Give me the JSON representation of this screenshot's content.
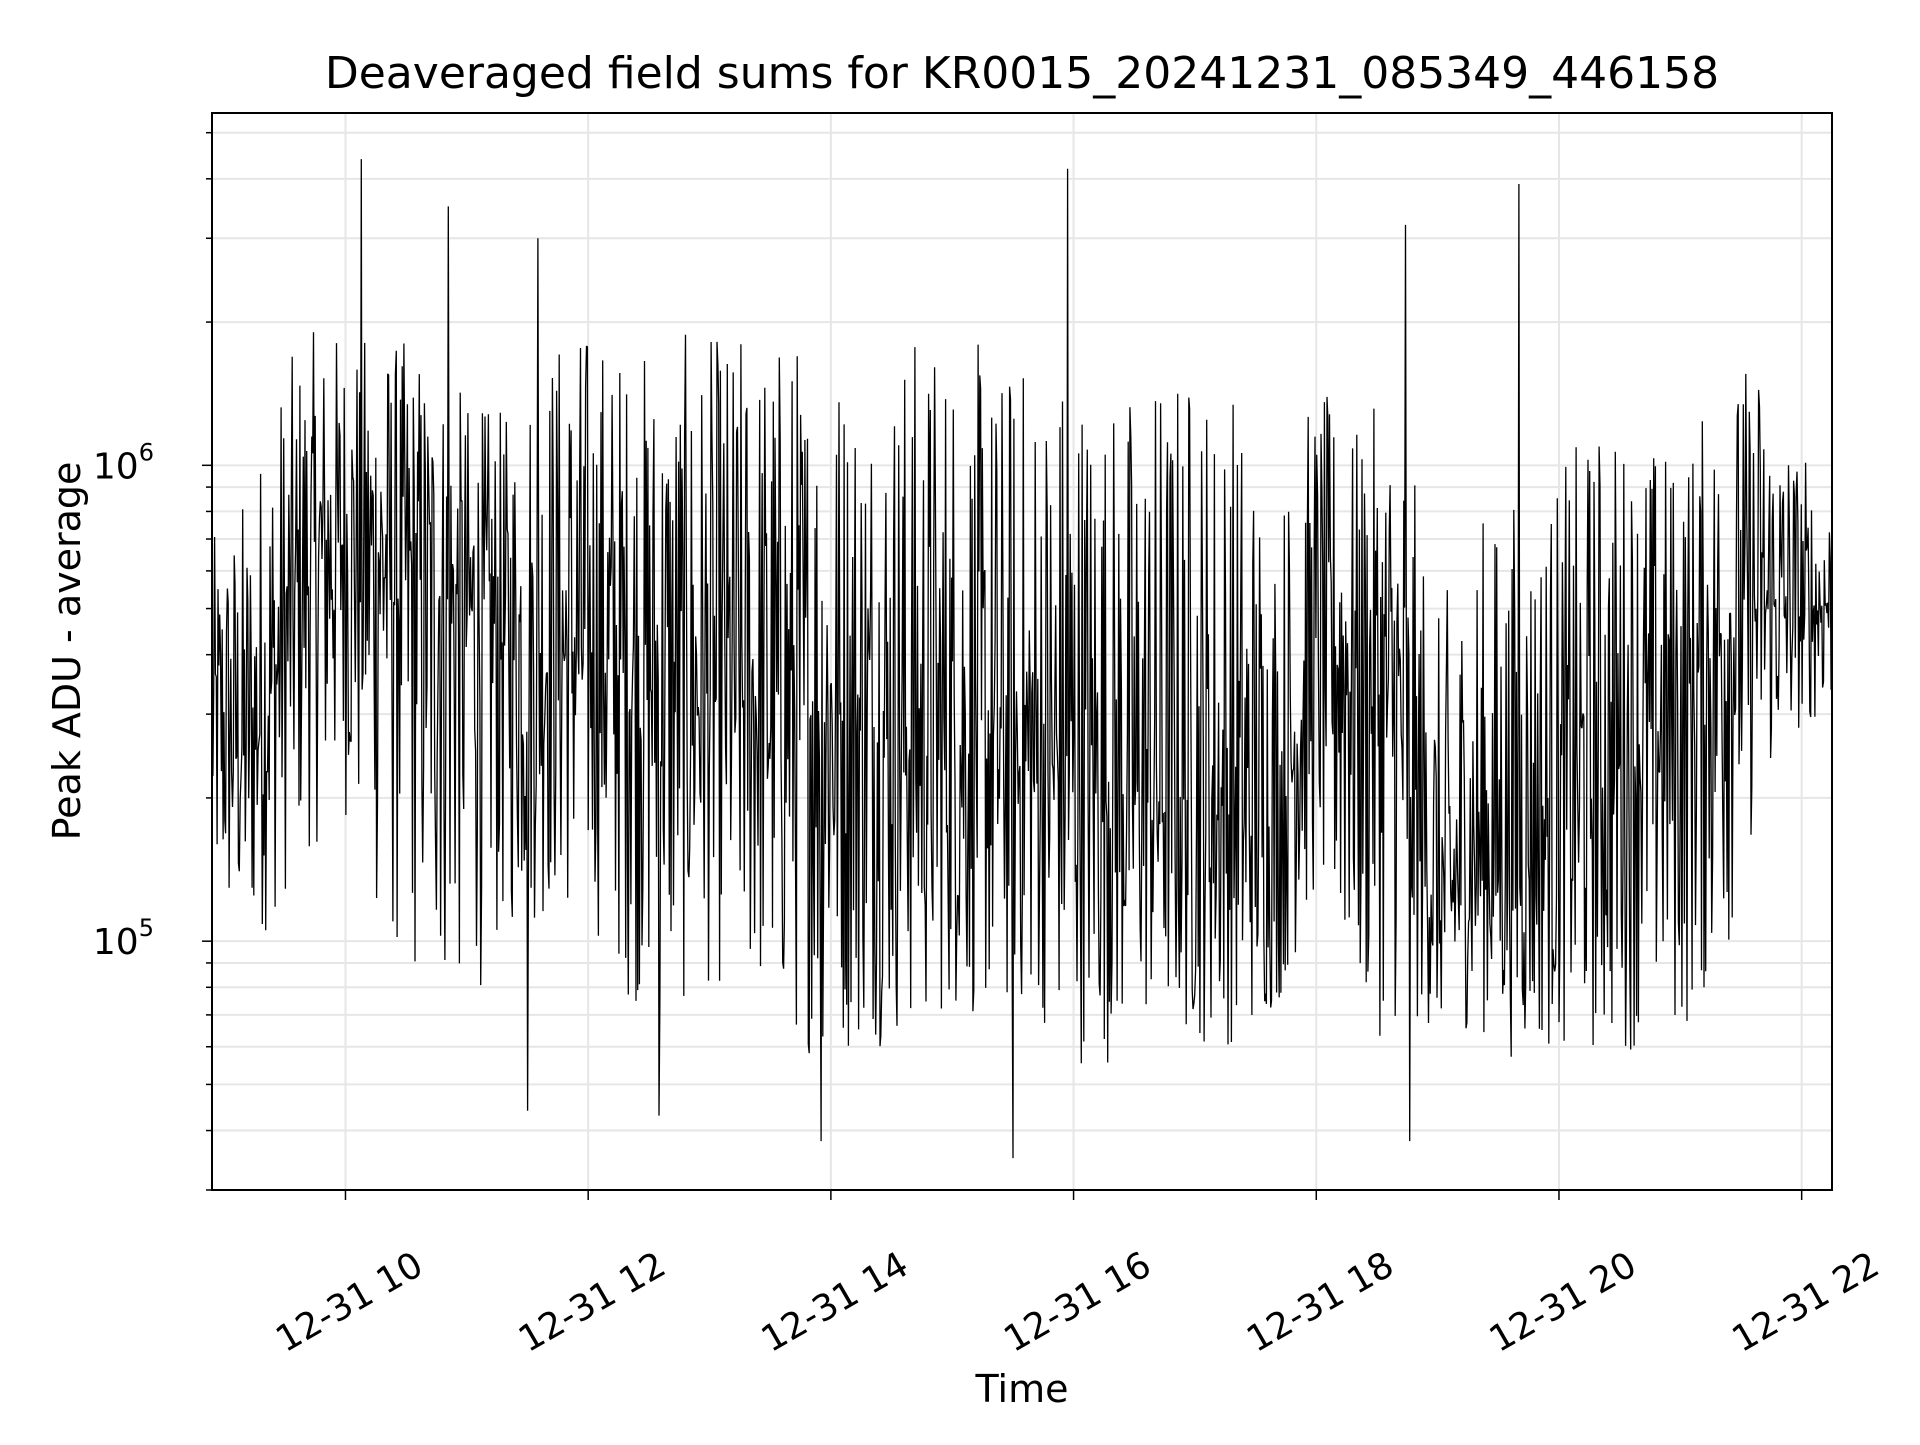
{
  "chart_data": {
    "type": "line",
    "title": "Deaveraged field sums for KR0015_20241231_085349_446158",
    "xlabel": "Time",
    "ylabel": "Peak ADU - average",
    "yscale": "log",
    "ylim": [
      30000,
      5500000
    ],
    "xlim": [
      "2024-12-31 08:54",
      "2024-12-31 22:15"
    ],
    "grid": true,
    "x_ticks": [
      {
        "value": "2024-12-31 10:00",
        "label": "12-31 10"
      },
      {
        "value": "2024-12-31 12:00",
        "label": "12-31 12"
      },
      {
        "value": "2024-12-31 14:00",
        "label": "12-31 14"
      },
      {
        "value": "2024-12-31 16:00",
        "label": "12-31 16"
      },
      {
        "value": "2024-12-31 18:00",
        "label": "12-31 18"
      },
      {
        "value": "2024-12-31 20:00",
        "label": "12-31 20"
      },
      {
        "value": "2024-12-31 22:00",
        "label": "12-31 22"
      }
    ],
    "y_ticks": [
      {
        "value": 100000,
        "base": "10",
        "exp": "5"
      },
      {
        "value": 1000000,
        "base": "10",
        "exp": "6"
      }
    ],
    "series": [
      {
        "color": "#000000",
        "x": [
          "2024-12-31 08:54",
          "2024-12-31 09:10",
          "2024-12-31 09:25",
          "2024-12-31 09:40",
          "2024-12-31 10:00",
          "2024-12-31 10:20",
          "2024-12-31 10:40",
          "2024-12-31 11:00",
          "2024-12-31 11:20",
          "2024-12-31 11:40",
          "2024-12-31 12:00",
          "2024-12-31 12:20",
          "2024-12-31 12:40",
          "2024-12-31 13:00",
          "2024-12-31 13:20",
          "2024-12-31 13:40",
          "2024-12-31 14:00",
          "2024-12-31 14:20",
          "2024-12-31 14:40",
          "2024-12-31 15:00",
          "2024-12-31 15:20",
          "2024-12-31 15:40",
          "2024-12-31 16:00",
          "2024-12-31 16:20",
          "2024-12-31 16:40",
          "2024-12-31 17:00",
          "2024-12-31 17:20",
          "2024-12-31 17:40",
          "2024-12-31 18:00",
          "2024-12-31 18:20",
          "2024-12-31 18:40",
          "2024-12-31 19:00",
          "2024-12-31 19:20",
          "2024-12-31 19:40",
          "2024-12-31 20:00",
          "2024-12-31 20:20",
          "2024-12-31 20:40",
          "2024-12-31 21:00",
          "2024-12-31 21:20",
          "2024-12-31 21:40",
          "2024-12-31 22:00",
          "2024-12-31 22:15"
        ],
        "y_median": [
          300000,
          250000,
          350000,
          600000,
          700000,
          650000,
          550000,
          500000,
          450000,
          400000,
          420000,
          380000,
          350000,
          330000,
          320000,
          310000,
          290000,
          270000,
          260000,
          250000,
          240000,
          230000,
          220000,
          210000,
          200000,
          190000,
          180000,
          160000,
          420000,
          380000,
          300000,
          110000,
          150000,
          150000,
          180000,
          220000,
          260000,
          300000,
          420000,
          500000,
          480000,
          520000
        ],
        "y_high": [
          700000,
          900000,
          1500000,
          1900000,
          2000000,
          1900000,
          1800000,
          1400000,
          1300000,
          2000000,
          2100000,
          1800000,
          1900000,
          1900000,
          2000000,
          2000000,
          1900000,
          1800000,
          2000000,
          2100000,
          1700000,
          1800000,
          1900000,
          1500000,
          1700000,
          1800000,
          1600000,
          900000,
          1500000,
          1200000,
          1500000,
          500000,
          800000,
          900000,
          1000000,
          1300000,
          1200000,
          1100000,
          1500000,
          1800000,
          1100000,
          900000
        ],
        "y_low": [
          100000,
          90000,
          110000,
          150000,
          180000,
          90000,
          75000,
          70000,
          100000,
          110000,
          110000,
          75000,
          65000,
          80000,
          75000,
          60000,
          55000,
          60000,
          60000,
          70000,
          65000,
          70000,
          55000,
          55000,
          65000,
          60000,
          60000,
          70000,
          120000,
          60000,
          65000,
          65000,
          65000,
          55000,
          60000,
          55000,
          60000,
          60000,
          80000,
          200000,
          280000,
          300000
        ],
        "spikes": [
          {
            "x": "2024-12-31 10:08",
            "y": 4400000
          },
          {
            "x": "2024-12-31 10:51",
            "y": 3500000
          },
          {
            "x": "2024-12-31 11:35",
            "y": 3000000
          },
          {
            "x": "2024-12-31 15:57",
            "y": 4200000
          },
          {
            "x": "2024-12-31 18:44",
            "y": 3200000
          },
          {
            "x": "2024-12-31 19:40",
            "y": 3900000
          },
          {
            "x": "2024-12-31 11:30",
            "y": 44000
          },
          {
            "x": "2024-12-31 12:35",
            "y": 43000
          },
          {
            "x": "2024-12-31 13:55",
            "y": 38000
          },
          {
            "x": "2024-12-31 15:30",
            "y": 35000
          },
          {
            "x": "2024-12-31 18:46",
            "y": 38000
          }
        ]
      }
    ]
  }
}
